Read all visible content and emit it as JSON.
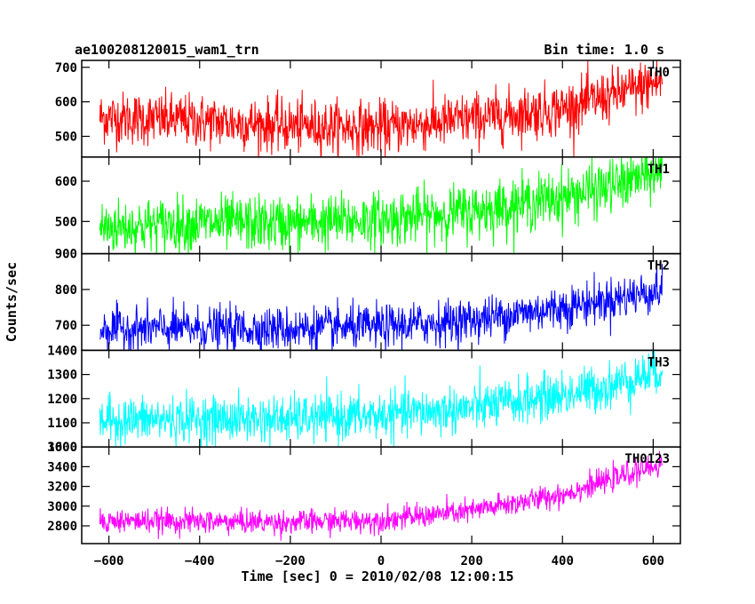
{
  "chart_data": {
    "type": "line",
    "title_left": "ae100208120015_wam1_trn",
    "title_right": "Bin time: 1.0 s",
    "xlabel": "Time [sec] 0 = 2010/02/08 12:00:15",
    "ylabel": "Counts/sec",
    "xlim": [
      -660,
      660
    ],
    "x_ticks": [
      -600,
      -400,
      -200,
      0,
      200,
      400,
      600
    ],
    "x_tick_labels": [
      "−600",
      "−400",
      "−200",
      "0",
      "200",
      "400",
      "600"
    ],
    "x_range": [
      -620,
      620
    ],
    "panels": [
      {
        "name": "TH0",
        "color": "#ff0000",
        "ylim": [
          440,
          720
        ],
        "y_ticks": [
          500,
          600,
          700
        ],
        "y_tick_labels": [
          "500",
          "600",
          "700"
        ],
        "trend_x": [
          -620,
          -400,
          -200,
          0,
          200,
          400,
          500,
          620
        ],
        "trend_y": [
          555,
          545,
          530,
          525,
          550,
          580,
          615,
          660
        ],
        "noise": 38
      },
      {
        "name": "TH1",
        "color": "#00ff00",
        "ylim": [
          420,
          660
        ],
        "y_ticks": [
          500,
          600
        ],
        "y_tick_labels": [
          "500",
          "600"
        ],
        "trend_x": [
          -620,
          -400,
          -200,
          0,
          200,
          400,
          500,
          620
        ],
        "trend_y": [
          485,
          495,
          495,
          505,
          525,
          560,
          585,
          625
        ],
        "noise": 34
      },
      {
        "name": "TH2",
        "color": "#0000ff",
        "ylim": [
          630,
          900
        ],
        "y_ticks": [
          700,
          800,
          900
        ],
        "y_tick_labels": [
          "700",
          "800",
          "900"
        ],
        "trend_x": [
          -620,
          -400,
          -200,
          0,
          200,
          400,
          500,
          620
        ],
        "trend_y": [
          690,
          690,
          690,
          695,
          715,
          750,
          770,
          800
        ],
        "noise": 30
      },
      {
        "name": "TH3",
        "color": "#00ffff",
        "ylim": [
          1000,
          1400
        ],
        "y_ticks": [
          1000,
          1100,
          1200,
          1300,
          1400
        ],
        "y_tick_labels": [
          "1000",
          "1100",
          "1200",
          "1300",
          "1400"
        ],
        "trend_x": [
          -620,
          -400,
          -200,
          0,
          200,
          400,
          500,
          620
        ],
        "trend_y": [
          1110,
          1115,
          1115,
          1130,
          1160,
          1215,
          1250,
          1320
        ],
        "noise": 48
      },
      {
        "name": "TH0123",
        "color": "#ff00ff",
        "ylim": [
          2620,
          3600
        ],
        "y_ticks": [
          2800,
          3000,
          3200,
          3400,
          3600
        ],
        "y_tick_labels": [
          "2800",
          "3000",
          "3200",
          "3400",
          "3600"
        ],
        "trend_x": [
          -620,
          -400,
          -200,
          0,
          200,
          400,
          500,
          620
        ],
        "trend_y": [
          2850,
          2845,
          2835,
          2860,
          2950,
          3120,
          3260,
          3430
        ],
        "noise": 60
      }
    ]
  }
}
